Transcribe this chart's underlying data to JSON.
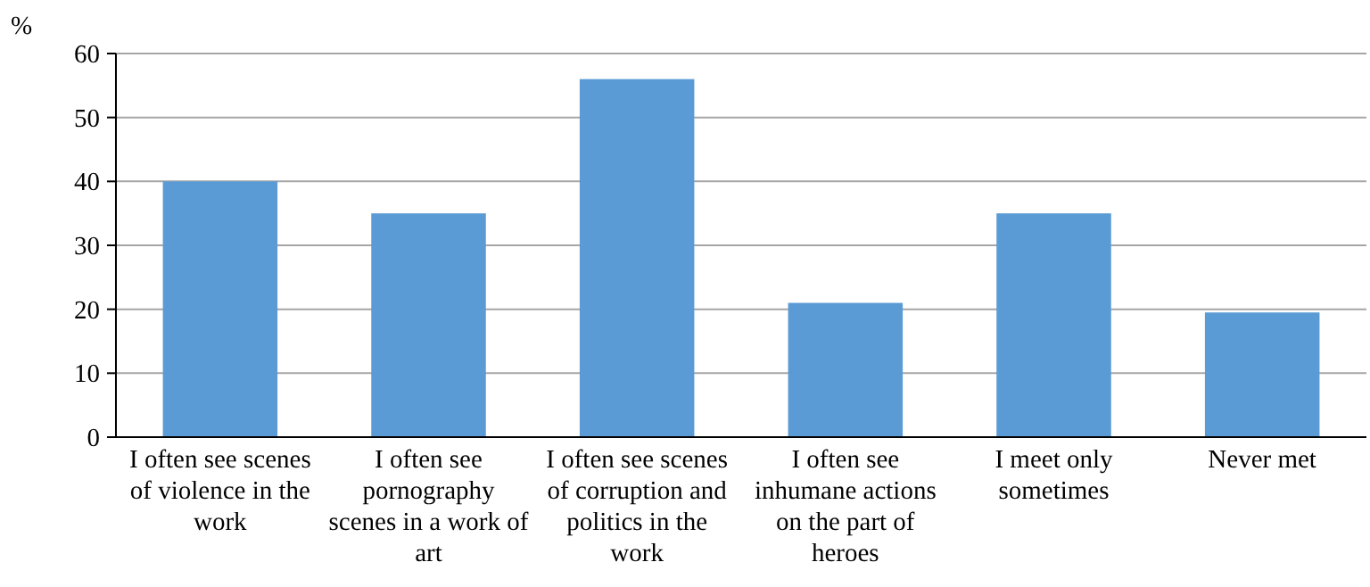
{
  "chart_data": {
    "type": "bar",
    "ylabel": "%",
    "categories": [
      "I often see scenes of violence in the work",
      "I often see pornography scenes in a work of art",
      "I often see scenes of corruption and politics in the work",
      "I often see inhumane actions on the part of heroes",
      "I meet only sometimes",
      "Never met"
    ],
    "values": [
      40,
      35,
      56,
      21,
      35,
      19.5
    ],
    "color": "#5b9bd5",
    "ylim": [
      0,
      60
    ],
    "yticks": [
      0,
      10,
      20,
      30,
      40,
      50,
      60
    ],
    "grid": "y"
  }
}
